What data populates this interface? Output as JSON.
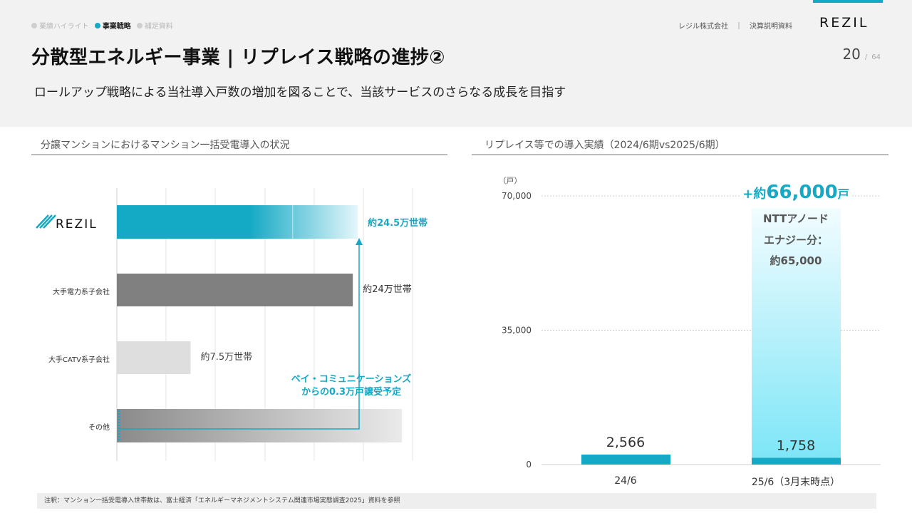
{
  "header": {
    "breadcrumbs": [
      {
        "label": "業績ハイライト",
        "active": false
      },
      {
        "label": "事業戦略",
        "active": true
      },
      {
        "label": "補足資料",
        "active": false
      }
    ],
    "company": "レジル株式会社　｜　決算説明資料",
    "logo_text": "REZIL",
    "title": "分散型エネルギー事業 | リプレイス戦略の進捗②",
    "page_current": "20",
    "page_sep": "/",
    "page_total": "64",
    "subtitle": "ロールアップ戦略による当社導入戸数の増加を図ることで、当該サービスのさらなる成長を目指す"
  },
  "left_section": {
    "heading": "分譲マンションにおけるマンション一括受電導入の状況",
    "arrow_note_line1": "ベイ・コミュニケーションズ",
    "arrow_note_line2": "からの0.3万戸譲受予定"
  },
  "right_section": {
    "heading": "リプレイス等での導入実績（2024/6期vs2025/6期）",
    "unit": "（戸）",
    "highlight_prefix": "+約",
    "highlight_value": "66,000",
    "highlight_suffix": "戸",
    "ntt_line1": "NTTアノード",
    "ntt_line2": "エナジー分：",
    "ntt_line3": "約65,000"
  },
  "note": "注釈：マンション一括受電導入世帯数は、富士経済「エネルギーマネジメントシステム関連市場実態調査2025」資料を参照",
  "colors": {
    "accent": "#14a9c4",
    "dark_gray": "#808080",
    "light_gray": "#dedede",
    "light_cyan": "#7ee6f7"
  },
  "chart_data": [
    {
      "type": "bar",
      "orientation": "horizontal",
      "categories": [
        "REZIL",
        "大手電力系子会社",
        "大手CATV系子会社",
        "その他"
      ],
      "values": [
        24.5,
        24,
        7.5,
        29
      ],
      "value_labels": [
        "約24.5万世帯",
        "約24万世帯",
        "約7.5万世帯",
        ""
      ],
      "unit": "万世帯",
      "title": "分譲マンションにおけるマンション一括受電導入の状況"
    },
    {
      "type": "bar",
      "categories": [
        "24/6",
        "25/6（3月末時点）"
      ],
      "values": [
        2566,
        1758
      ],
      "value_labels": [
        "2,566",
        "1,758"
      ],
      "stacked_extra": {
        "category": "25/6（3月末時点）",
        "value": 65000
      },
      "yticks": [
        "0",
        "35,000",
        "70,000"
      ],
      "ylim": [
        0,
        70000
      ],
      "ylabel": "（戸）",
      "title": "リプレイス等での導入実績（2024/6期vs2025/6期）"
    }
  ]
}
